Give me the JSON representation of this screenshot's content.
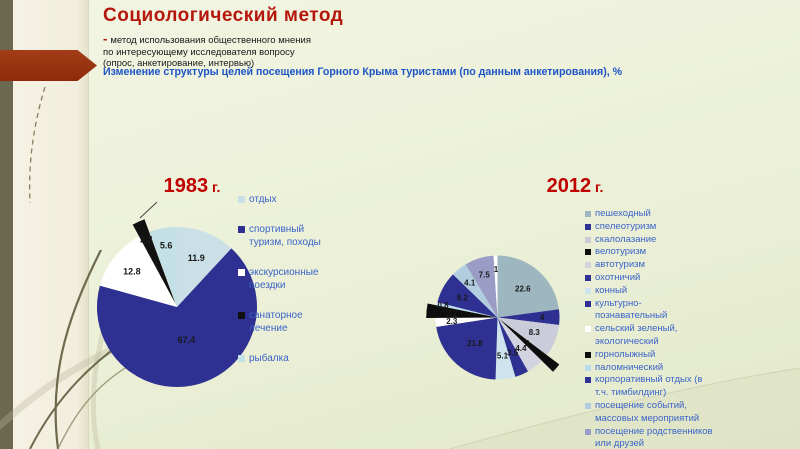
{
  "header": {
    "title": "Социологический метод",
    "dash": "-",
    "definition_lines": [
      "метод использования общественного мнения",
      "по интересующему исследователя вопросу",
      "(опрос, анкетирование, интервью)"
    ],
    "subtitle": "Изменение структуры целей посещения Горного Крыма туристами (по данным анкетирования), %"
  },
  "colors": {
    "title_red": "#b5160c",
    "subtitle_blue": "#1d55c5",
    "chart_title_red": "#c00000",
    "arrow_brick": "#952e0e",
    "legend_text_blue": "#3c64c8",
    "navy_slice": "#2e3191",
    "background": "#ecf0d8",
    "side_bar_olive": "#6b684f"
  },
  "chart_data": [
    {
      "type": "pie",
      "title": "1983 г.",
      "year": "1983",
      "year_suffix": " г.",
      "legend_position": "right",
      "series": [
        {
          "label": "отдых",
          "value": 11.9,
          "color": "#cbdfe7"
        },
        {
          "label": "спортивный\nтуризм, походы",
          "value": 67.4,
          "color": "#2e3191"
        },
        {
          "label": "экскурсионные\nпоездки",
          "value": 12.8,
          "color": "#ffffff"
        },
        {
          "label": "санаторное\nлечение",
          "value": 2.3,
          "color": "#111111"
        },
        {
          "label": "рыбалка",
          "value": 5.6,
          "color": "#c3e0e6"
        }
      ]
    },
    {
      "type": "pie",
      "title": "2012 г.",
      "year": "2012",
      "year_suffix": " г.",
      "legend_position": "right",
      "series": [
        {
          "label": "пешеходный",
          "value": 22.6,
          "color": "#9db6bf"
        },
        {
          "label": "спелеотуризм",
          "value": 4,
          "color": "#2e3191"
        },
        {
          "label": "скалолазание",
          "value": 8.3,
          "color": "#cbccda"
        },
        {
          "label": "велотуризм",
          "value": 2,
          "color": "#0d0d0d"
        },
        {
          "label": "автотуризм",
          "value": 4.4,
          "color": "#d3d4df"
        },
        {
          "label": "охотничий",
          "value": 3.5,
          "color": "#2e3191"
        },
        {
          "label": "конный",
          "value": 5.1,
          "color": "#cde4ee"
        },
        {
          "label": "культурно-\nпознавательный",
          "value": 21.8,
          "color": "#2e3191"
        },
        {
          "label": "сельский зеленый,\nэкологический",
          "value": 2.3,
          "color": "#ffffff"
        },
        {
          "label": "горнолыжный",
          "value": 3.2,
          "color": "#0d0d0d"
        },
        {
          "label": "паломнический",
          "value": 0.8,
          "color": "#badcec"
        },
        {
          "label": "корпоративный отдых (в\nт.ч. тимбилдинг)",
          "value": 8.2,
          "color": "#2e3191"
        },
        {
          "label": "посещение событий,\nмассовых мероприятий",
          "value": 4.1,
          "color": "#b3cde0"
        },
        {
          "label": "посещение родственников\nили друзей",
          "value": 7.5,
          "color": "#9b9cc6"
        },
        {
          "label": "",
          "value": 1,
          "color": "#ffffff"
        }
      ]
    }
  ]
}
